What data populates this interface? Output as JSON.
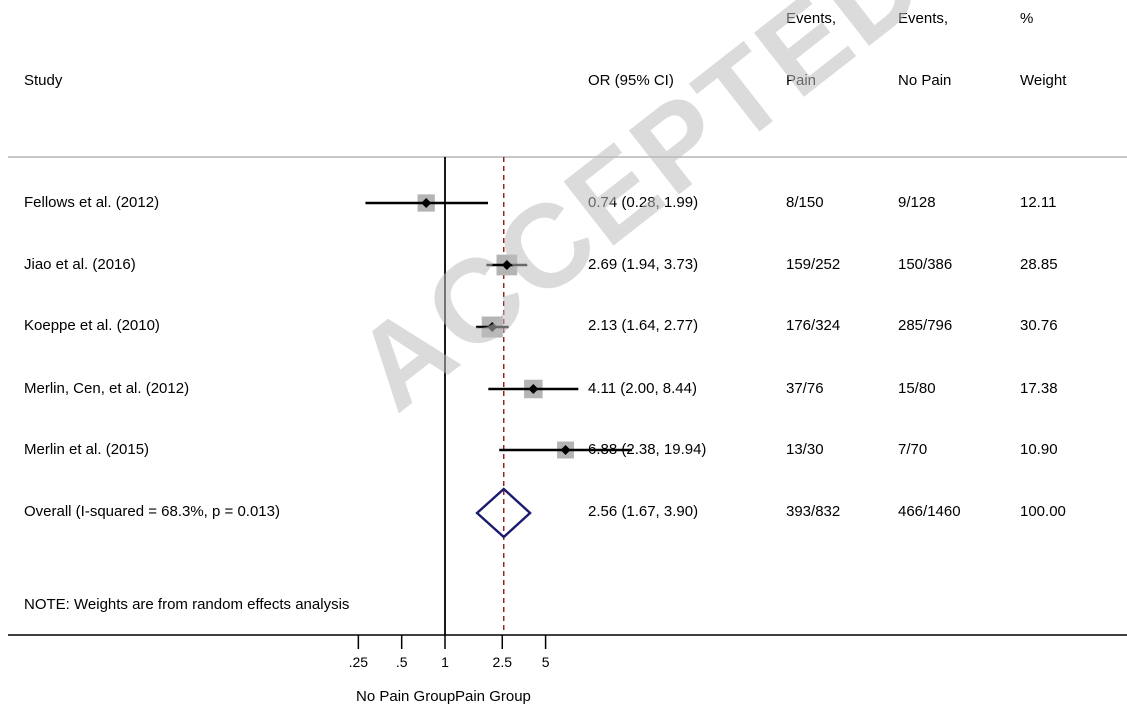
{
  "header": {
    "study": "Study",
    "or_ci": "OR (95% CI)",
    "events_pain_1": "Events,",
    "events_pain_2": "Pain",
    "events_nopain_1": "Events,",
    "events_nopain_2": "No Pain",
    "weight_1": "%",
    "weight_2": "Weight"
  },
  "rows": [
    {
      "study": "Fellows et al. (2012)",
      "or_text": "0.74 (0.28, 1.99)",
      "events_pain": "8/150",
      "events_nopain": "9/128",
      "weight": "12.11"
    },
    {
      "study": "Jiao et al. (2016)",
      "or_text": "2.69 (1.94, 3.73)",
      "events_pain": "159/252",
      "events_nopain": "150/386",
      "weight": "28.85"
    },
    {
      "study": "Koeppe et al. (2010)",
      "or_text": "2.13 (1.64, 2.77)",
      "events_pain": "176/324",
      "events_nopain": "285/796",
      "weight": "30.76"
    },
    {
      "study": "Merlin, Cen, et al. (2012)",
      "or_text": "4.11 (2.00, 8.44)",
      "events_pain": "37/76",
      "events_nopain": "15/80",
      "weight": "17.38"
    },
    {
      "study": "Merlin et al. (2015)",
      "or_text": "6.88 (2.38, 19.94)",
      "events_pain": "13/30",
      "events_nopain": "7/70",
      "weight": "10.90"
    }
  ],
  "overall": {
    "study": "Overall  (I-squared = 68.3%, p = 0.013)",
    "or_text": "2.56 (1.67, 3.90)",
    "events_pain": "393/832",
    "events_nopain": "466/1460",
    "weight": "100.00"
  },
  "note": "NOTE: Weights are from random effects analysis",
  "x_labels": {
    "left": "No Pain Group",
    "right": "Pain Group"
  },
  "watermark": "ACCEPTED",
  "colors": {
    "box": "#b4b4b4",
    "overall_diamond": "#1a1a6e",
    "reference_line": "#8b1a1a",
    "watermark": "#bebebe"
  },
  "chart_data": {
    "type": "forest",
    "xscale": "log",
    "null_value": 1,
    "pooled_value": 2.56,
    "ticks": [
      0.25,
      0.5,
      1,
      2.5,
      5
    ],
    "tick_labels": [
      ".25",
      ".5",
      "1",
      "2.5",
      "5"
    ],
    "studies": [
      {
        "name": "Fellows et al. (2012)",
        "or": 0.74,
        "lo": 0.28,
        "hi": 1.99,
        "weight": 12.11
      },
      {
        "name": "Jiao et al. (2016)",
        "or": 2.69,
        "lo": 1.94,
        "hi": 3.73,
        "weight": 28.85
      },
      {
        "name": "Koeppe et al. (2010)",
        "or": 2.13,
        "lo": 1.64,
        "hi": 2.77,
        "weight": 30.76
      },
      {
        "name": "Merlin, Cen, et al. (2012)",
        "or": 4.11,
        "lo": 2.0,
        "hi": 8.44,
        "weight": 17.38
      },
      {
        "name": "Merlin et al. (2015)",
        "or": 6.88,
        "lo": 2.38,
        "hi": 19.94,
        "weight": 10.9
      }
    ],
    "overall": {
      "or": 2.56,
      "lo": 1.67,
      "hi": 3.9
    }
  }
}
